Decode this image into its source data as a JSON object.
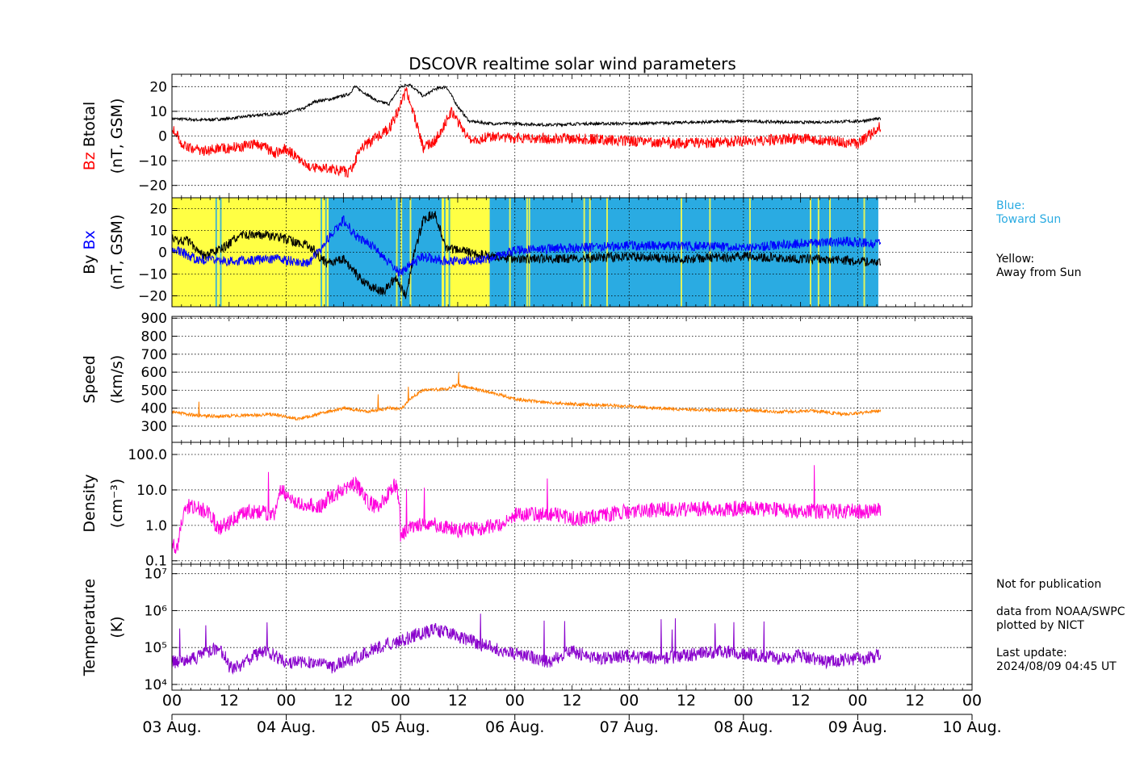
{
  "title": "DSCOVR realtime solar wind parameters",
  "colors": {
    "btotal": "#000000",
    "bz": "#ff0000",
    "by": "#000000",
    "bx": "#0000ff",
    "speed": "#ff8000",
    "density": "#ff00dd",
    "temperature": "#8800cc",
    "toward_sun": "#2aabe2",
    "away_sun": "#ffff44"
  },
  "chart_data": [
    {
      "type": "line",
      "panel": "magnetic-field-total",
      "ylabel_parts": [
        "Bz",
        "Btotal",
        "(nT, GSM)"
      ],
      "ylim": [
        -25,
        25
      ],
      "yticks": [
        -20,
        -10,
        0,
        10,
        20
      ],
      "ytick_labels": [
        "−20",
        "−10",
        "0",
        "10",
        "20"
      ],
      "series": [
        {
          "name": "Btotal",
          "color": "#000000",
          "x": [
            0,
            0.25,
            0.5,
            0.75,
            0.95,
            1.15,
            1.25,
            1.4,
            1.55,
            1.6,
            1.8,
            1.9,
            2.0,
            2.08,
            2.2,
            2.3,
            2.4,
            2.5,
            2.6,
            2.8,
            3.0,
            3.3,
            3.6,
            4.0,
            4.5,
            5.0,
            5.5,
            6.0,
            6.2
          ],
          "y": [
            7,
            6.5,
            7,
            8.5,
            9,
            11,
            14,
            15,
            17,
            20,
            14,
            13,
            20,
            21,
            16,
            19,
            20,
            12,
            6,
            5,
            5,
            4.5,
            5,
            5,
            5.5,
            6,
            5.5,
            6,
            7
          ]
        },
        {
          "name": "Bz",
          "color": "#ff0000",
          "x": [
            0,
            0.1,
            0.25,
            0.5,
            0.75,
            0.9,
            1.0,
            1.15,
            1.25,
            1.4,
            1.55,
            1.65,
            1.8,
            1.9,
            1.98,
            2.05,
            2.12,
            2.2,
            2.3,
            2.45,
            2.6,
            2.8,
            3.0,
            3.5,
            4.0,
            4.5,
            5.0,
            5.5,
            6.0,
            6.2
          ],
          "y": [
            4,
            -4,
            -6,
            -5,
            -3,
            -7,
            -5,
            -11,
            -13,
            -13,
            -15,
            -5,
            0,
            3,
            10,
            18,
            8,
            -5,
            -2,
            10,
            -2,
            0,
            -1,
            -1,
            -2,
            -3,
            -2,
            -1,
            -3,
            4
          ]
        }
      ]
    },
    {
      "type": "line",
      "panel": "magnetic-field-components",
      "ylabel_parts": [
        "By",
        "Bx",
        "(nT, GSM)"
      ],
      "ylim": [
        -25,
        25
      ],
      "yticks": [
        -20,
        -10,
        0,
        10,
        20
      ],
      "ytick_labels": [
        "−20",
        "−10",
        "0",
        "10",
        "20"
      ],
      "legend": [
        "Blue:",
        "Toward Sun",
        "Yellow:",
        "Away from Sun"
      ],
      "sector_intervals": [
        {
          "polarity": "away",
          "start": 0.0,
          "end": 1.37
        },
        {
          "polarity": "toward",
          "start": 1.37,
          "end": 2.36
        },
        {
          "polarity": "away",
          "start": 2.36,
          "end": 2.78
        },
        {
          "polarity": "toward",
          "start": 2.78,
          "end": 6.18
        }
      ],
      "series": [
        {
          "name": "By",
          "color": "#000000",
          "x": [
            0,
            0.15,
            0.3,
            0.45,
            0.6,
            0.8,
            1.0,
            1.2,
            1.35,
            1.5,
            1.7,
            1.85,
            1.95,
            2.05,
            2.12,
            2.2,
            2.3,
            2.4,
            2.6,
            2.8,
            3.0,
            3.5,
            4.0,
            4.5,
            5.0,
            5.5,
            6.0,
            6.2
          ],
          "y": [
            6,
            5,
            -2,
            2,
            8,
            8,
            6,
            3,
            -5,
            -3,
            -15,
            -18,
            -12,
            -20,
            0,
            15,
            18,
            2,
            0,
            -2,
            -3,
            -3,
            -2,
            -3,
            -2,
            -3,
            -4,
            -5
          ]
        },
        {
          "name": "Bx",
          "color": "#0000ff",
          "x": [
            0,
            0.2,
            0.4,
            0.6,
            0.9,
            1.2,
            1.35,
            1.5,
            1.6,
            1.75,
            1.9,
            2.0,
            2.1,
            2.2,
            2.4,
            2.6,
            2.78,
            3.0,
            3.5,
            4.0,
            4.5,
            5.0,
            5.5,
            5.9,
            6.2
          ],
          "y": [
            2,
            -3,
            -4,
            -4,
            -3,
            -5,
            5,
            15,
            8,
            3,
            -5,
            -10,
            -5,
            -2,
            -4,
            -4,
            -3,
            1,
            2,
            3,
            3,
            2,
            4,
            5,
            4
          ]
        }
      ]
    },
    {
      "type": "line",
      "panel": "solar-wind-speed",
      "ylabel_parts": [
        "Speed",
        "(km/s)"
      ],
      "ylim": [
        210,
        910
      ],
      "yticks": [
        300,
        400,
        500,
        600,
        700,
        800,
        900
      ],
      "ytick_labels": [
        "300",
        "400",
        "500",
        "600",
        "700",
        "800",
        "900"
      ],
      "series": [
        {
          "name": "Speed",
          "color": "#ff8000",
          "x": [
            0,
            0.2,
            0.4,
            0.6,
            0.9,
            1.1,
            1.3,
            1.5,
            1.7,
            1.9,
            2.0,
            2.1,
            2.2,
            2.4,
            2.5,
            2.7,
            2.9,
            3.0,
            3.3,
            3.6,
            4.0,
            4.5,
            5.0,
            5.3,
            5.6,
            5.9,
            6.2
          ],
          "y": [
            380,
            360,
            355,
            360,
            365,
            340,
            370,
            400,
            380,
            400,
            395,
            460,
            500,
            505,
            530,
            500,
            470,
            450,
            430,
            420,
            410,
            390,
            390,
            380,
            385,
            365,
            385
          ]
        }
      ]
    },
    {
      "type": "line",
      "panel": "proton-density",
      "ylabel_parts": [
        "Density",
        "(cm⁻³)"
      ],
      "scale": "log",
      "ylim": [
        0.08,
        220
      ],
      "yticks": [
        0.1,
        1.0,
        10.0,
        100.0
      ],
      "ytick_labels": [
        "0.1",
        "1.0",
        "10.0",
        "100.0"
      ],
      "series": [
        {
          "name": "Density",
          "color": "#ff00dd",
          "x": [
            0,
            0.05,
            0.15,
            0.3,
            0.4,
            0.5,
            0.7,
            0.9,
            0.95,
            1.1,
            1.3,
            1.5,
            1.6,
            1.7,
            1.8,
            1.9,
            1.95,
            2.0,
            2.1,
            2.3,
            2.5,
            2.7,
            2.9,
            3.0,
            3.3,
            3.6,
            4.0,
            4.5,
            5.0,
            5.5,
            6.0,
            6.2
          ],
          "y": [
            0.3,
            0.2,
            3.5,
            2.5,
            0.8,
            1.2,
            2.5,
            2.0,
            9,
            4,
            3.5,
            10,
            15,
            5,
            3,
            8,
            15,
            0.5,
            1.0,
            1.0,
            0.7,
            0.8,
            1.2,
            2.0,
            2.0,
            1.5,
            2.5,
            3,
            3,
            2.5,
            2.5,
            2.5
          ]
        }
      ]
    },
    {
      "type": "line",
      "panel": "proton-temperature",
      "ylabel_parts": [
        "Temperature",
        "(K)"
      ],
      "scale": "log",
      "ylim": [
        7000,
        18000000
      ],
      "yticks": [
        10000,
        100000,
        1000000,
        10000000
      ],
      "ytick_labels": [
        "10⁴",
        "10⁵",
        "10⁶",
        "10⁷"
      ],
      "series": [
        {
          "name": "Temperature",
          "color": "#8800cc",
          "x": [
            0,
            0.2,
            0.4,
            0.5,
            0.6,
            0.8,
            1.0,
            1.2,
            1.4,
            1.6,
            1.8,
            2.0,
            2.2,
            2.3,
            2.5,
            2.7,
            2.9,
            3.1,
            3.3,
            3.5,
            3.7,
            4.0,
            4.3,
            4.5,
            4.8,
            5.0,
            5.3,
            5.5,
            5.7,
            6.0,
            6.2
          ],
          "y": [
            40000,
            50000,
            100000,
            30000,
            30000,
            80000,
            40000,
            40000,
            30000,
            50000,
            100000,
            150000,
            250000,
            300000,
            200000,
            120000,
            80000,
            60000,
            40000,
            80000,
            50000,
            60000,
            50000,
            60000,
            80000,
            70000,
            50000,
            60000,
            40000,
            50000,
            60000
          ]
        }
      ]
    }
  ],
  "x_axis": {
    "xlim": [
      0,
      7
    ],
    "hour_labels": [
      "00",
      "12",
      "00",
      "12",
      "00",
      "12",
      "00",
      "12",
      "00",
      "12",
      "00",
      "12",
      "00",
      "12",
      "00"
    ],
    "day_labels": [
      "03 Aug.",
      "04 Aug.",
      "05 Aug.",
      "06 Aug.",
      "07 Aug.",
      "08 Aug.",
      "09 Aug.",
      "10 Aug."
    ]
  },
  "notes": {
    "not_for_pub": "Not for publication",
    "source1": "data from NOAA/SWPC",
    "source2": "plotted by NICT",
    "update_label": "Last update:",
    "update_value": "2024/08/09 04:45 UT"
  }
}
